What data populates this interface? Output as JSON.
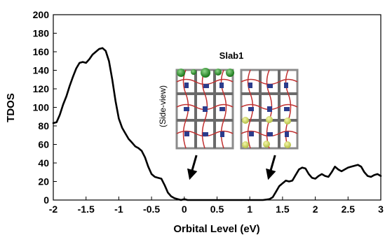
{
  "chart_data": {
    "type": "line",
    "xlabel": "Orbital Level (eV)",
    "ylabel": "TDOS",
    "xlim": [
      -2,
      3
    ],
    "ylim": [
      0,
      200
    ],
    "x_ticks": [
      "-2",
      "-1.5",
      "-1",
      "-0.5",
      "0",
      "0.5",
      "1",
      "1.5",
      "2",
      "2.5",
      "3"
    ],
    "y_ticks": [
      "0",
      "20",
      "40",
      "60",
      "80",
      "100",
      "120",
      "140",
      "160",
      "180",
      "200"
    ],
    "grid": false,
    "series": [
      {
        "color": "#000000",
        "points": [
          [
            -2.0,
            83
          ],
          [
            -1.95,
            84
          ],
          [
            -1.9,
            92
          ],
          [
            -1.85,
            103
          ],
          [
            -1.8,
            112
          ],
          [
            -1.75,
            123
          ],
          [
            -1.7,
            133
          ],
          [
            -1.65,
            142
          ],
          [
            -1.6,
            148
          ],
          [
            -1.55,
            149
          ],
          [
            -1.5,
            148
          ],
          [
            -1.45,
            152
          ],
          [
            -1.4,
            157
          ],
          [
            -1.35,
            160
          ],
          [
            -1.3,
            163
          ],
          [
            -1.25,
            164
          ],
          [
            -1.2,
            161
          ],
          [
            -1.15,
            150
          ],
          [
            -1.1,
            130
          ],
          [
            -1.05,
            107
          ],
          [
            -1.0,
            88
          ],
          [
            -0.95,
            78
          ],
          [
            -0.9,
            72
          ],
          [
            -0.85,
            66
          ],
          [
            -0.8,
            62
          ],
          [
            -0.75,
            58
          ],
          [
            -0.7,
            56
          ],
          [
            -0.65,
            53
          ],
          [
            -0.6,
            46
          ],
          [
            -0.55,
            36
          ],
          [
            -0.5,
            28
          ],
          [
            -0.45,
            25
          ],
          [
            -0.4,
            24
          ],
          [
            -0.35,
            23
          ],
          [
            -0.3,
            16
          ],
          [
            -0.25,
            8
          ],
          [
            -0.2,
            4
          ],
          [
            -0.15,
            2
          ],
          [
            -0.1,
            1
          ],
          [
            -0.05,
            0
          ],
          [
            0.0,
            1
          ],
          [
            0.05,
            0
          ],
          [
            0.1,
            0
          ],
          [
            0.2,
            0
          ],
          [
            0.3,
            0
          ],
          [
            0.4,
            0
          ],
          [
            0.5,
            0
          ],
          [
            0.6,
            0
          ],
          [
            0.7,
            0
          ],
          [
            0.8,
            0
          ],
          [
            0.9,
            0
          ],
          [
            1.0,
            0
          ],
          [
            1.1,
            0
          ],
          [
            1.2,
            0
          ],
          [
            1.3,
            1
          ],
          [
            1.35,
            3
          ],
          [
            1.4,
            9
          ],
          [
            1.45,
            15
          ],
          [
            1.5,
            18
          ],
          [
            1.55,
            21
          ],
          [
            1.6,
            20
          ],
          [
            1.65,
            21
          ],
          [
            1.7,
            27
          ],
          [
            1.75,
            33
          ],
          [
            1.8,
            35
          ],
          [
            1.85,
            34
          ],
          [
            1.9,
            28
          ],
          [
            1.95,
            24
          ],
          [
            2.0,
            23
          ],
          [
            2.05,
            26
          ],
          [
            2.1,
            28
          ],
          [
            2.15,
            26
          ],
          [
            2.2,
            25
          ],
          [
            2.25,
            30
          ],
          [
            2.3,
            36
          ],
          [
            2.35,
            33
          ],
          [
            2.4,
            31
          ],
          [
            2.45,
            33
          ],
          [
            2.5,
            35
          ],
          [
            2.55,
            36
          ],
          [
            2.6,
            37
          ],
          [
            2.65,
            38
          ],
          [
            2.7,
            36
          ],
          [
            2.75,
            30
          ],
          [
            2.8,
            26
          ],
          [
            2.85,
            25
          ],
          [
            2.9,
            27
          ],
          [
            2.95,
            28
          ],
          [
            3.0,
            26
          ]
        ]
      }
    ],
    "annotations": {
      "title": "Slab1",
      "side_label": "(Side-view)",
      "arrow_targets_ev": [
        0.1,
        1.3
      ]
    }
  }
}
